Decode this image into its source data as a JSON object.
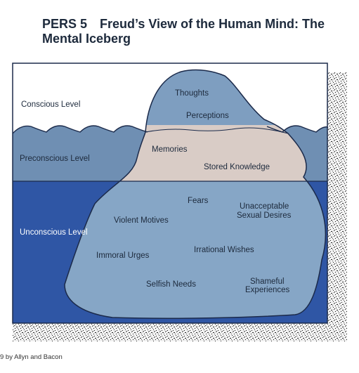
{
  "title": {
    "code": "PERS 5",
    "line1": "Freud’s View of the Human Mind:  The",
    "line2": "Mental Iceberg"
  },
  "levels": {
    "conscious": "Conscious Level",
    "preconscious": "Preconscious Level",
    "unconscious": "Unconscious Level"
  },
  "conscious_items": [
    "Thoughts",
    "Perceptions"
  ],
  "preconscious_items": [
    "Memories",
    "Stored Knowledge"
  ],
  "unconscious_items": {
    "fears": "Fears",
    "unacceptable_1": "Unacceptable",
    "unacceptable_2": "Sexual Desires",
    "violent": "Violent Motives",
    "immoral": "Immoral Urges",
    "irrational": "Irrational Wishes",
    "selfish": "Selfish Needs",
    "shameful_1": "Shameful",
    "shameful_2": "Experiences"
  },
  "footer": "9 by Allyn and Bacon",
  "colors": {
    "sky": "#ffffff",
    "water_upper": "#6f8fb3",
    "water_deep": "#2f56a5",
    "ice_top": "#7e9ec0",
    "ice_middle": "#d9ccc6",
    "ice_bottom": "#86a6c6",
    "outline": "#1b2a4a"
  }
}
